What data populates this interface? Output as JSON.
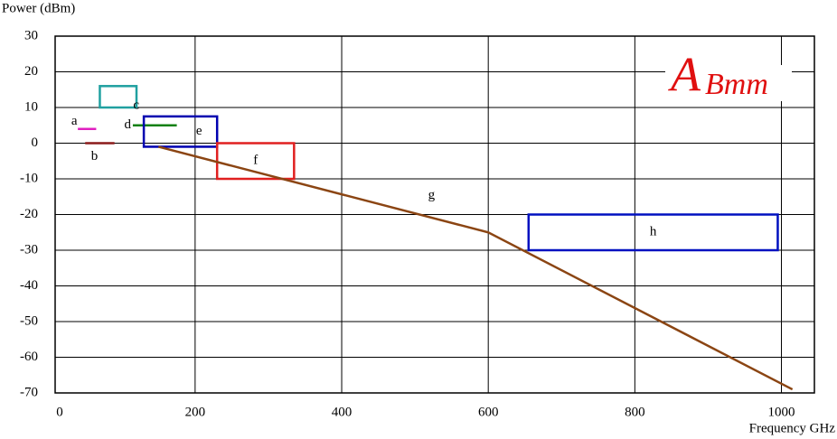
{
  "chart_data": {
    "type": "annotated",
    "y_label": "Power (dBm)",
    "x_label": "Frequency GHz",
    "logo": {
      "big": "A",
      "rest": "Bmm"
    },
    "xlim": [
      9,
      1045
    ],
    "xticks": [
      0,
      200,
      400,
      600,
      800,
      1000
    ],
    "ylim": [
      -70,
      30
    ],
    "yticks": [
      30,
      20,
      10,
      0,
      -10,
      -20,
      -30,
      -40,
      -50,
      -60,
      -70
    ],
    "grid": true,
    "items": [
      {
        "label": "a",
        "kind": "line",
        "color": "#e020c0",
        "x": [
          40,
          65
        ],
        "y": [
          4,
          4
        ]
      },
      {
        "label": "b",
        "kind": "line",
        "color": "#8b1a1a",
        "x": [
          50,
          90
        ],
        "y": [
          0,
          0
        ]
      },
      {
        "label": "c",
        "kind": "rect",
        "color": "#20a0a0",
        "x": [
          70,
          120
        ],
        "y": [
          10,
          16
        ]
      },
      {
        "label": "d",
        "kind": "line",
        "color": "#108010",
        "x": [
          115,
          175
        ],
        "y": [
          5,
          5
        ]
      },
      {
        "label": "e",
        "kind": "rect",
        "color": "#0000b0",
        "x": [
          130,
          230
        ],
        "y": [
          -1,
          7.5
        ]
      },
      {
        "label": "f",
        "kind": "rect",
        "color": "#e02020",
        "x": [
          230,
          335
        ],
        "y": [
          -10,
          0
        ]
      },
      {
        "label": "g",
        "kind": "line",
        "color": "#8b4513",
        "x": [
          150,
          600,
          1015
        ],
        "y": [
          -1,
          -25,
          -69
        ]
      },
      {
        "label": "h",
        "kind": "rect",
        "color": "#0010c0",
        "x": [
          655,
          995
        ],
        "y": [
          -30,
          -20
        ]
      }
    ]
  }
}
